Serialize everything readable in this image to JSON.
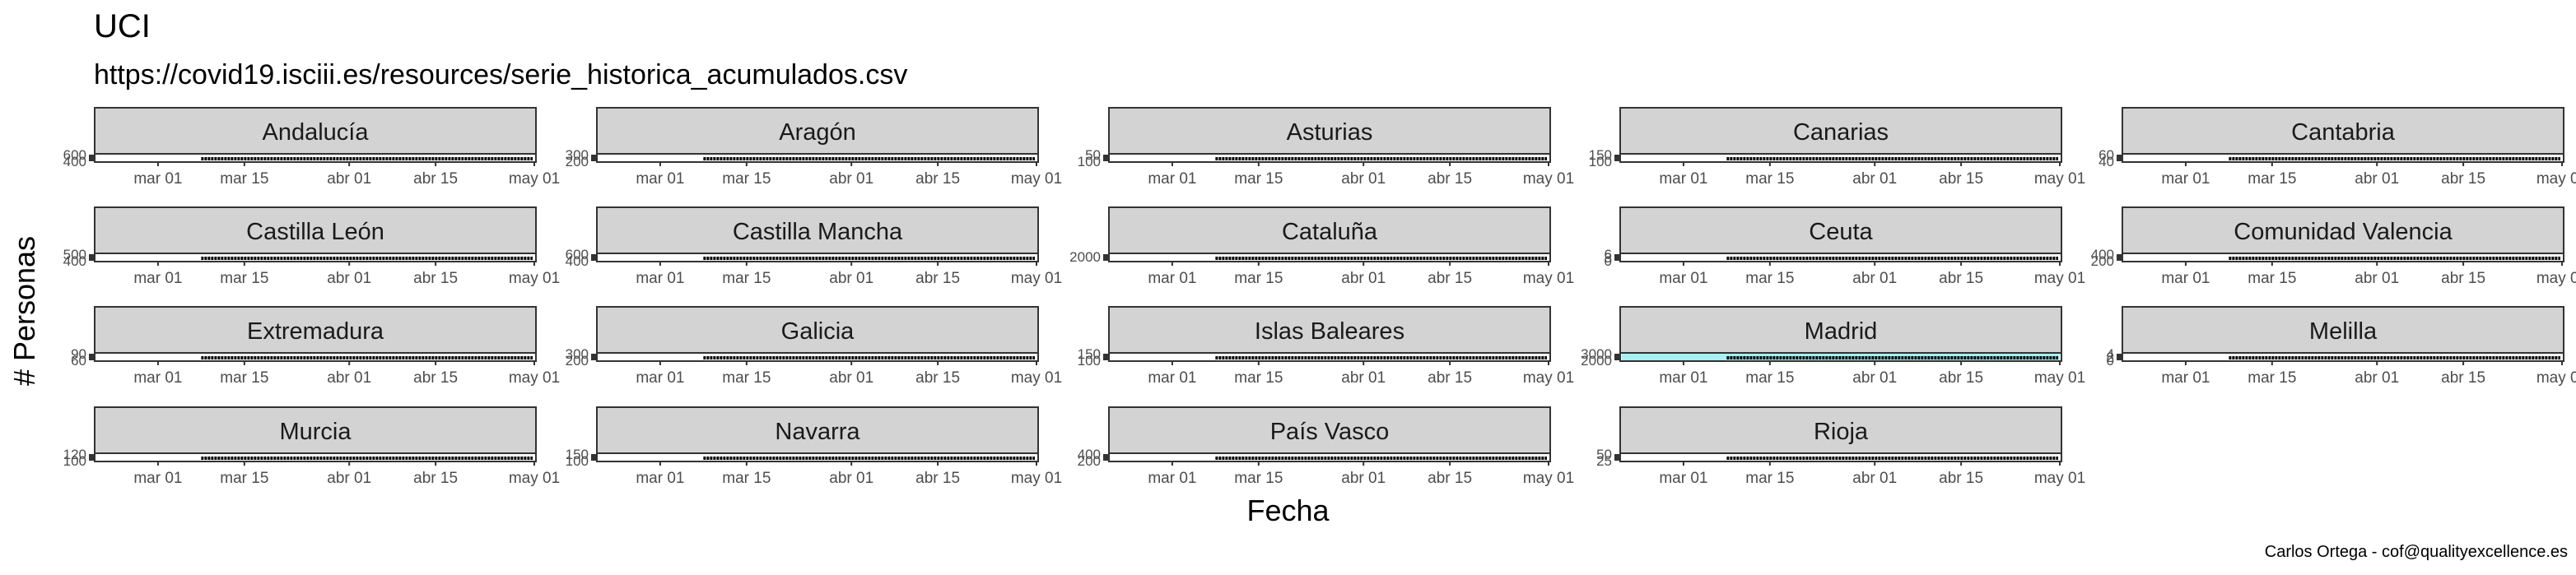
{
  "title": "UCI",
  "subtitle": "https://covid19.isciii.es/resources/serie_historica_acumulados.csv",
  "xlabel": "Fecha",
  "ylabel": "# Personas",
  "caption": "Carlos Ortega - cof@qualityexcellence.es",
  "colors": {
    "strip_fill": "#d3d3d3",
    "line": "#000000",
    "madrid_area": "#a8f0f2"
  },
  "chart_data": {
    "type": "line",
    "layout": "facet_wrap 4 rows x 5 columns, strip labels on top",
    "x_ticks": [
      "mar 01",
      "mar 15",
      "abr 01",
      "abr 15",
      "may 01"
    ],
    "x_range": [
      "2020-02-20",
      "2020-05-01"
    ],
    "panels": [
      {
        "name": "Andalucía",
        "y_ticks": [
          "400",
          "600"
        ]
      },
      {
        "name": "Aragón",
        "y_ticks": [
          "200",
          "300"
        ]
      },
      {
        "name": "Asturias",
        "y_ticks": [
          "100",
          "50"
        ]
      },
      {
        "name": "Canarias",
        "y_ticks": [
          "100",
          "150"
        ]
      },
      {
        "name": "Cantabria",
        "y_ticks": [
          "40",
          "60"
        ]
      },
      {
        "name": "Castilla León",
        "y_ticks": [
          "400",
          "500"
        ]
      },
      {
        "name": "Castilla Mancha",
        "y_ticks": [
          "400",
          "600"
        ]
      },
      {
        "name": "Cataluña",
        "y_ticks": [
          "2000"
        ]
      },
      {
        "name": "Ceuta",
        "y_ticks": [
          "0",
          "3",
          "6"
        ]
      },
      {
        "name": "Comunidad Valencia",
        "y_ticks": [
          "200",
          "400"
        ]
      },
      {
        "name": "Extremadura",
        "y_ticks": [
          "60",
          "90"
        ]
      },
      {
        "name": "Galicia",
        "y_ticks": [
          "200",
          "300"
        ]
      },
      {
        "name": "Islas Baleares",
        "y_ticks": [
          "100",
          "150"
        ]
      },
      {
        "name": "Madrid",
        "y_ticks": [
          "2000",
          "3000"
        ]
      },
      {
        "name": "Melilla",
        "y_ticks": [
          "0",
          "2",
          "4"
        ]
      },
      {
        "name": "Murcia",
        "y_ticks": [
          "100",
          "120"
        ]
      },
      {
        "name": "Navarra",
        "y_ticks": [
          "100",
          "150"
        ]
      },
      {
        "name": "País Vasco",
        "y_ticks": [
          "200",
          "400"
        ]
      },
      {
        "name": "Rioja",
        "y_ticks": [
          "25",
          "50"
        ]
      }
    ]
  }
}
